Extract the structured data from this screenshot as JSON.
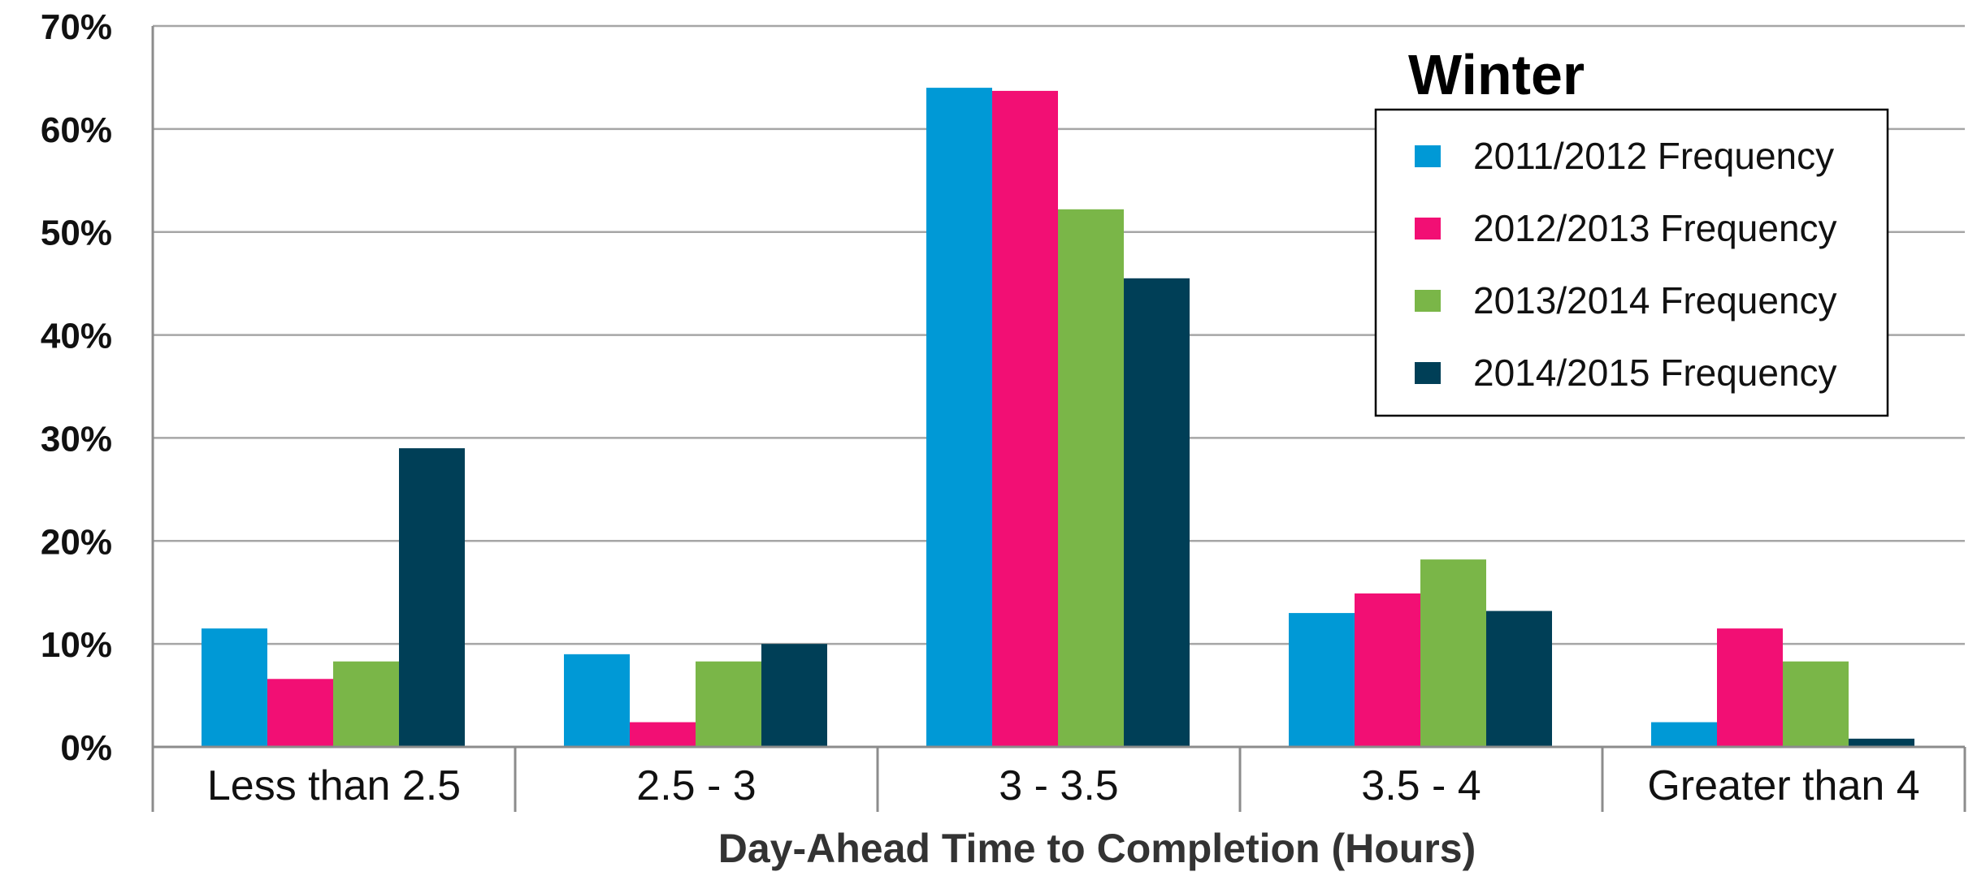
{
  "chart_data": {
    "type": "bar",
    "title": "Winter",
    "xlabel": "Day-Ahead Time to Completion (Hours)",
    "ylabel": "",
    "ylim": [
      0,
      0.7
    ],
    "yticks": [
      "0%",
      "10%",
      "20%",
      "30%",
      "40%",
      "50%",
      "60%",
      "70%"
    ],
    "categories": [
      "Less than 2.5",
      "2.5 - 3",
      "3 - 3.5",
      "3.5 - 4",
      "Greater than 4"
    ],
    "series": [
      {
        "name": "2011/2012 Frequency",
        "color": "#0099d6",
        "values": [
          0.115,
          0.09,
          0.64,
          0.13,
          0.024
        ]
      },
      {
        "name": "2012/2013 Frequency",
        "color": "#f20f74",
        "values": [
          0.066,
          0.024,
          0.637,
          0.149,
          0.115
        ]
      },
      {
        "name": "2013/2014 Frequency",
        "color": "#7ab648",
        "values": [
          0.083,
          0.083,
          0.522,
          0.182,
          0.083
        ]
      },
      {
        "name": "2014/2015 Frequency",
        "color": "#003f57",
        "values": [
          0.29,
          0.1,
          0.455,
          0.132,
          0.008
        ]
      }
    ],
    "grid": true,
    "legend_position": "top-right"
  }
}
